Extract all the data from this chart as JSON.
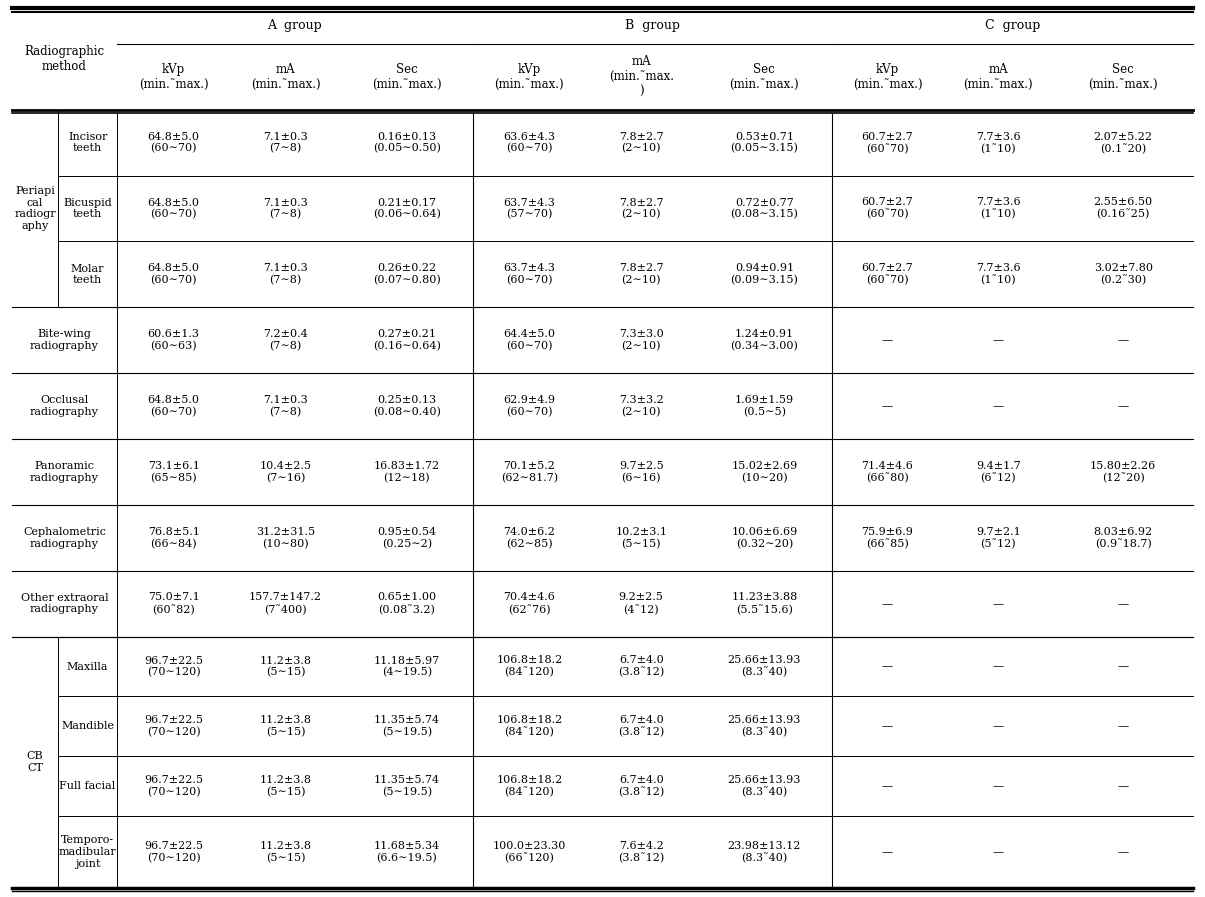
{
  "col_headers_row1": [
    "A  group",
    "B  group",
    "C  group"
  ],
  "col_headers_row2": [
    "kVp\n(min.˜max.)",
    "mA\n(min.˜max.)",
    "Sec\n(min.˜max.)",
    "kVp\n(min.˜max.)",
    "mA\n(min.˜max.\n)",
    "Sec\n(min.˜max.)",
    "kVp\n(min.˜max.)",
    "mA\n(min.˜max.)",
    "Sec\n(min.˜max.)"
  ],
  "rows": [
    {
      "group_label": "Periapi\ncal\nradiogr\naphy",
      "has_sub": true,
      "row_label": "Incisor\nteeth",
      "A_kVp": "64.8±5.0\n(60∼70)",
      "A_mA": "7.1±0.3\n(7∼8)",
      "A_Sec": "0.16±0.13\n(0.05∼0.50)",
      "B_kVp": "63.6±4.3\n(60∼70)",
      "B_mA": "7.8±2.7\n(2∼10)",
      "B_Sec": "0.53±0.71\n(0.05∼3.15)",
      "C_kVp": "60.7±2.7\n(60˜70)",
      "C_mA": "7.7±3.6\n(1˜10)",
      "C_Sec": "2.07±5.22\n(0.1˜20)"
    },
    {
      "group_label": "",
      "has_sub": true,
      "row_label": "Bicuspid\nteeth",
      "A_kVp": "64.8±5.0\n(60∼70)",
      "A_mA": "7.1±0.3\n(7∼8)",
      "A_Sec": "0.21±0.17\n(0.06∼0.64)",
      "B_kVp": "63.7±4.3\n(57∼70)",
      "B_mA": "7.8±2.7\n(2∼10)",
      "B_Sec": "0.72±0.77\n(0.08∼3.15)",
      "C_kVp": "60.7±2.7\n(60˜70)",
      "C_mA": "7.7±3.6\n(1˜10)",
      "C_Sec": "2.55±6.50\n(0.16˜25)"
    },
    {
      "group_label": "",
      "has_sub": true,
      "row_label": "Molar\nteeth",
      "A_kVp": "64.8±5.0\n(60∼70)",
      "A_mA": "7.1±0.3\n(7∼8)",
      "A_Sec": "0.26±0.22\n(0.07∼0.80)",
      "B_kVp": "63.7±4.3\n(60∼70)",
      "B_mA": "7.8±2.7\n(2∼10)",
      "B_Sec": "0.94±0.91\n(0.09∼3.15)",
      "C_kVp": "60.7±2.7\n(60˜70)",
      "C_mA": "7.7±3.6\n(1˜10)",
      "C_Sec": "3.02±7.80\n(0.2˜30)"
    },
    {
      "group_label": "Bite-wing\nradiography",
      "has_sub": false,
      "row_label": "",
      "A_kVp": "60.6±1.3\n(60∼63)",
      "A_mA": "7.2±0.4\n(7∼8)",
      "A_Sec": "0.27±0.21\n(0.16∼0.64)",
      "B_kVp": "64.4±5.0\n(60∼70)",
      "B_mA": "7.3±3.0\n(2∼10)",
      "B_Sec": "1.24±0.91\n(0.34∼3.00)",
      "C_kVp": "—",
      "C_mA": "—",
      "C_Sec": "—"
    },
    {
      "group_label": "Occlusal\nradiography",
      "has_sub": false,
      "row_label": "",
      "A_kVp": "64.8±5.0\n(60∼70)",
      "A_mA": "7.1±0.3\n(7∼8)",
      "A_Sec": "0.25±0.13\n(0.08∼0.40)",
      "B_kVp": "62.9±4.9\n(60∼70)",
      "B_mA": "7.3±3.2\n(2∼10)",
      "B_Sec": "1.69±1.59\n(0.5∼5)",
      "C_kVp": "—",
      "C_mA": "—",
      "C_Sec": "—"
    },
    {
      "group_label": "Panoramic\nradiography",
      "has_sub": false,
      "row_label": "",
      "A_kVp": "73.1±6.1\n(65∼85)",
      "A_mA": "10.4±2.5\n(7∼16)",
      "A_Sec": "16.83±1.72\n(12∼18)",
      "B_kVp": "70.1±5.2\n(62∼81.7)",
      "B_mA": "9.7±2.5\n(6∼16)",
      "B_Sec": "15.02±2.69\n(10∼20)",
      "C_kVp": "71.4±4.6\n(66˜80)",
      "C_mA": "9.4±1.7\n(6˜12)",
      "C_Sec": "15.80±2.26\n(12˜20)"
    },
    {
      "group_label": "Cephalometric\nradiography",
      "has_sub": false,
      "row_label": "",
      "A_kVp": "76.8±5.1\n(66∼84)",
      "A_mA": "31.2±31.5\n(10∼80)",
      "A_Sec": "0.95±0.54\n(0.25∼2)",
      "B_kVp": "74.0±6.2\n(62∼85)",
      "B_mA": "10.2±3.1\n(5∼15)",
      "B_Sec": "10.06±6.69\n(0.32∼20)",
      "C_kVp": "75.9±6.9\n(66˜85)",
      "C_mA": "9.7±2.1\n(5˜12)",
      "C_Sec": "8.03±6.92\n(0.9˜18.7)"
    },
    {
      "group_label": "Other extraoral\nradiography",
      "has_sub": false,
      "row_label": "",
      "A_kVp": "75.0±7.1\n(60˜82)",
      "A_mA": "157.7±147.2\n(7˜400)",
      "A_Sec": "0.65±1.00\n(0.08˜3.2)",
      "B_kVp": "70.4±4.6\n(62˜76)",
      "B_mA": "9.2±2.5\n(4˜12)",
      "B_Sec": "11.23±3.88\n(5.5˜15.6)",
      "C_kVp": "—",
      "C_mA": "—",
      "C_Sec": "—"
    },
    {
      "group_label": "CB\nCT",
      "has_sub": true,
      "row_label": "Maxilla",
      "A_kVp": "96.7±22.5\n(70∼120)",
      "A_mA": "11.2±3.8\n(5∼15)",
      "A_Sec": "11.18±5.97\n(4∼19.5)",
      "B_kVp": "106.8±18.2\n(84˜120)",
      "B_mA": "6.7±4.0\n(3.8˜12)",
      "B_Sec": "25.66±13.93\n(8.3˜40)",
      "C_kVp": "—",
      "C_mA": "—",
      "C_Sec": "—"
    },
    {
      "group_label": "",
      "has_sub": true,
      "row_label": "Mandible",
      "A_kVp": "96.7±22.5\n(70∼120)",
      "A_mA": "11.2±3.8\n(5∼15)",
      "A_Sec": "11.35±5.74\n(5∼19.5)",
      "B_kVp": "106.8±18.2\n(84˜120)",
      "B_mA": "6.7±4.0\n(3.8˜12)",
      "B_Sec": "25.66±13.93\n(8.3˜40)",
      "C_kVp": "—",
      "C_mA": "—",
      "C_Sec": "—"
    },
    {
      "group_label": "",
      "has_sub": true,
      "row_label": "Full facial",
      "A_kVp": "96.7±22.5\n(70∼120)",
      "A_mA": "11.2±3.8\n(5∼15)",
      "A_Sec": "11.35±5.74\n(5∼19.5)",
      "B_kVp": "106.8±18.2\n(84˜120)",
      "B_mA": "6.7±4.0\n(3.8˜12)",
      "B_Sec": "25.66±13.93\n(8.3˜40)",
      "C_kVp": "—",
      "C_mA": "—",
      "C_Sec": "—"
    },
    {
      "group_label": "",
      "has_sub": true,
      "row_label": "Temporo-\nmadibular\njoint",
      "A_kVp": "96.7±22.5\n(70∼120)",
      "A_mA": "11.2±3.8\n(5∼15)",
      "A_Sec": "11.68±5.34\n(6.6∼19.5)",
      "B_kVp": "100.0±23.30\n(66˜120)",
      "B_mA": "7.6±4.2\n(3.8˜12)",
      "B_Sec": "23.98±13.12\n(8.3˜40)",
      "C_kVp": "—",
      "C_mA": "—",
      "C_Sec": "—"
    }
  ],
  "group_spans": [
    {
      "r0": 0,
      "r1": 2,
      "label": "Periapi\ncal\nradiogr\naphy",
      "has_sub": true
    },
    {
      "r0": 3,
      "r1": 3,
      "label": "Bite-wing\nradiography",
      "has_sub": false
    },
    {
      "r0": 4,
      "r1": 4,
      "label": "Occlusal\nradiography",
      "has_sub": false
    },
    {
      "r0": 5,
      "r1": 5,
      "label": "Panoramic\nradiography",
      "has_sub": false
    },
    {
      "r0": 6,
      "r1": 6,
      "label": "Cephalometric\nradiography",
      "has_sub": false
    },
    {
      "r0": 7,
      "r1": 7,
      "label": "Other extraoral\nradiography",
      "has_sub": false
    },
    {
      "r0": 8,
      "r1": 11,
      "label": "CB\nCT",
      "has_sub": true
    }
  ],
  "bg_color": "#ffffff"
}
